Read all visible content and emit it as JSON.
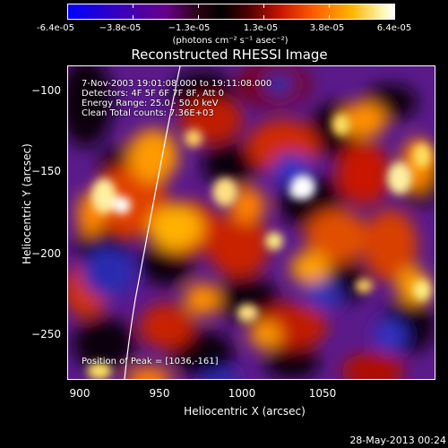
{
  "colorbar": {
    "ticks": [
      "-6.4e-05",
      "−3.8e-05",
      "−1.3e-05",
      "1.3e-05",
      "3.8e-05",
      "6.4e-05"
    ],
    "units": "(photons cm⁻² s⁻¹ asec⁻²)"
  },
  "title": "Reconstructed RHESSI Image",
  "info": {
    "time": "7-Nov-2003 19:01:08.000 to 19:11:08.000",
    "detectors": "Detectors: 4F 5F 6F 7F 8F, Att 0",
    "energy": "Energy Range: 25.0 - 50.0 keV",
    "clean": "Clean    Total counts: 7.36E+03",
    "peak": "Position of Peak = [1036,-161]"
  },
  "axes": {
    "xlabel": "Heliocentric X (arcsec)",
    "ylabel": "Heliocentric Y (arcsec)",
    "xticks": [
      "900",
      "950",
      "1000",
      "1050"
    ],
    "yticks": [
      "−100",
      "−150",
      "−200",
      "−250"
    ],
    "xlim": [
      892,
      1085
    ],
    "ylim": [
      -282,
      -87
    ]
  },
  "footer": "28-May-2013 00:24"
}
